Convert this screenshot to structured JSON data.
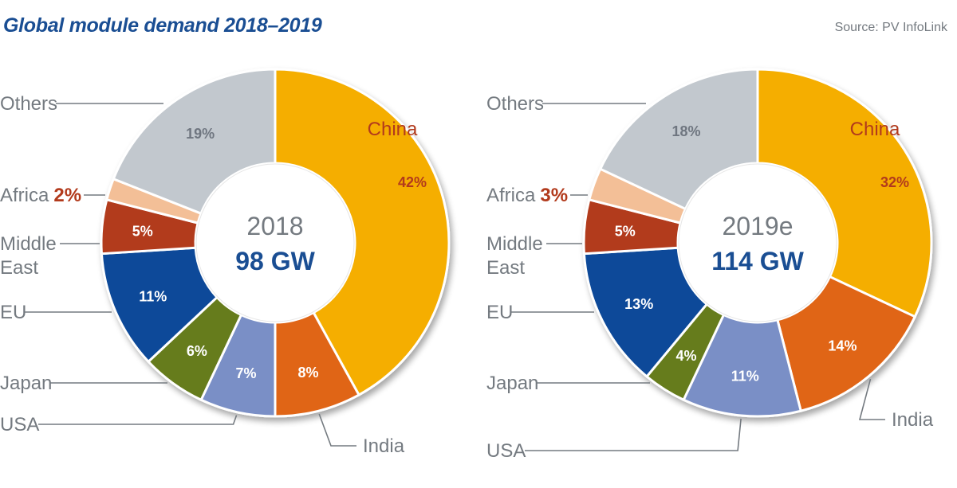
{
  "header": {
    "title": "Global module demand 2018–2019",
    "source": "Source: PV InfoLink"
  },
  "colors": {
    "China": "#f5ae00",
    "India": "#e06516",
    "USA": "#7a8fc6",
    "Japan": "#667c1d",
    "EU": "#0b4a99",
    "Middle East": "#b23a1c",
    "Africa": "#f3bf97",
    "Others": "#c2c8ce",
    "title": "#1a4e93",
    "label_gray": "#747a80",
    "label_red": "#b23a1c"
  },
  "chart_data": [
    {
      "type": "pie",
      "variant": "donut",
      "title": "2018",
      "center_label": "2018",
      "center_value": "98 GW",
      "categories": [
        "China",
        "India",
        "USA",
        "Japan",
        "EU",
        "Middle East",
        "Africa",
        "Others"
      ],
      "values": [
        42,
        8,
        7,
        6,
        11,
        5,
        2,
        19
      ],
      "value_labels": [
        "42%",
        "8%",
        "7%",
        "6%",
        "11%",
        "5%",
        "2%",
        "19%"
      ],
      "unit": "%",
      "total": "98 GW"
    },
    {
      "type": "pie",
      "variant": "donut",
      "title": "2019e",
      "center_label": "2019e",
      "center_value": "114 GW",
      "categories": [
        "China",
        "India",
        "USA",
        "Japan",
        "EU",
        "Middle East",
        "Africa",
        "Others"
      ],
      "values": [
        32,
        14,
        11,
        4,
        13,
        5,
        3,
        18
      ],
      "value_labels": [
        "32%",
        "14%",
        "11%",
        "4%",
        "13%",
        "5%",
        "3%",
        "18%"
      ],
      "unit": "%",
      "total": "114 GW"
    }
  ],
  "legend_labels": {
    "others": "Others",
    "africa": "Africa",
    "middle_east_line1": "Middle",
    "middle_east_line2": "East",
    "eu": "EU",
    "japan": "Japan",
    "usa": "USA",
    "china": "China",
    "india": "India"
  }
}
